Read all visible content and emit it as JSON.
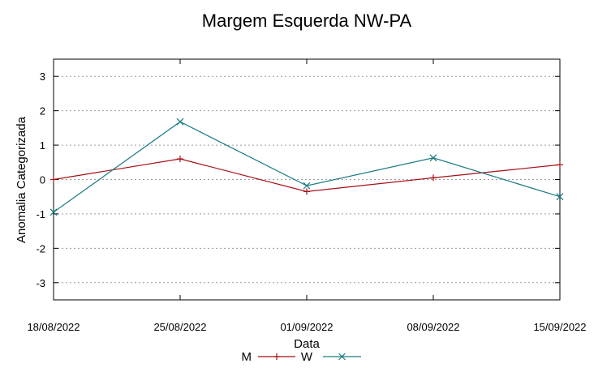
{
  "chart_data": {
    "type": "line",
    "title": "Margem Esquerda NW-PA",
    "xlabel": "Data",
    "ylabel": "Anomalia Categorizada",
    "categories": [
      "18/08/2022",
      "25/08/2022",
      "01/09/2022",
      "08/09/2022",
      "15/09/2022"
    ],
    "yticks": [
      -3,
      -2,
      -1,
      0,
      1,
      2,
      3
    ],
    "ylim": [
      -3.5,
      3.5
    ],
    "grid": true,
    "legend": "bottom-center",
    "series": [
      {
        "name": "M",
        "values": [
          0.0,
          0.6,
          -0.35,
          0.05,
          0.43
        ],
        "color": "#a50f15",
        "marker": "plus"
      },
      {
        "name": "W",
        "values": [
          -0.95,
          1.68,
          -0.18,
          0.63,
          -0.5
        ],
        "color": "#1a7a80",
        "marker": "x"
      }
    ]
  }
}
